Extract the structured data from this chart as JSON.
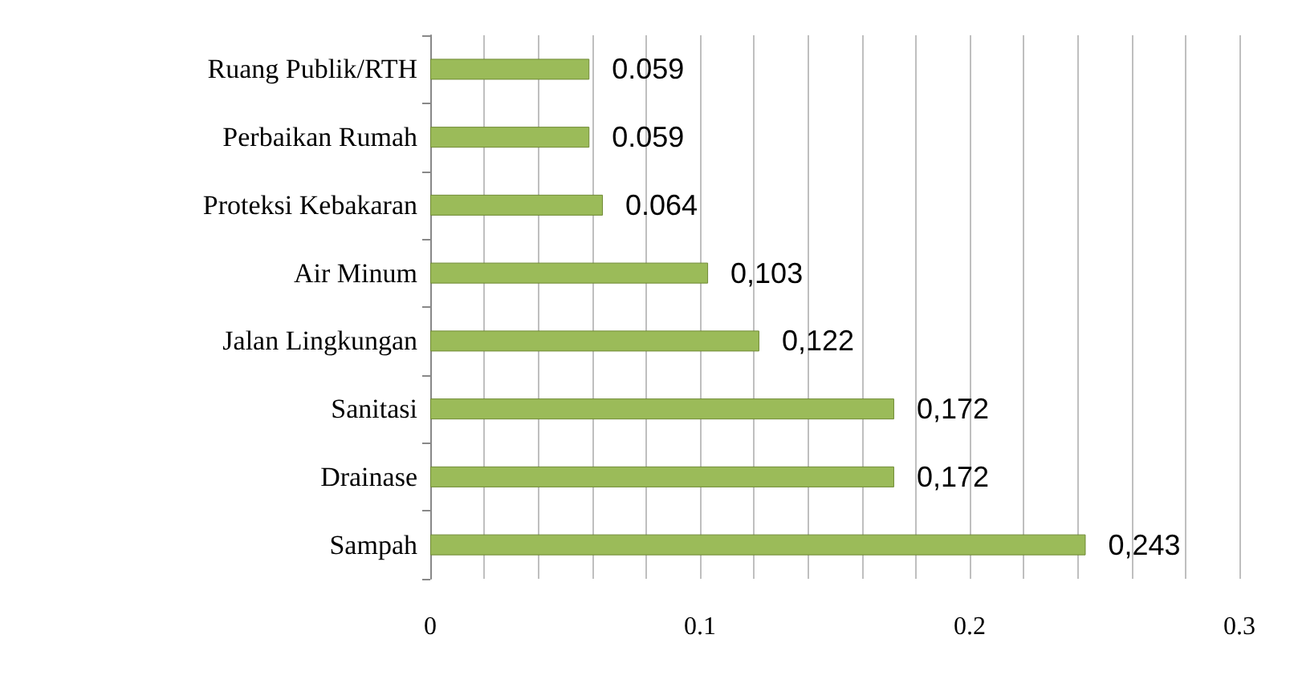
{
  "chart_data": {
    "type": "bar",
    "orientation": "horizontal",
    "categories": [
      "Ruang Publik/RTH",
      "Perbaikan Rumah",
      "Proteksi Kebakaran",
      "Air Minum",
      "Jalan Lingkungan",
      "Sanitasi",
      "Drainase",
      "Sampah"
    ],
    "values": [
      0.059,
      0.059,
      0.064,
      0.103,
      0.122,
      0.172,
      0.172,
      0.243
    ],
    "value_labels": [
      "0.059",
      "0.059",
      "0.064",
      "0,103",
      "0,122",
      "0,172",
      "0,172",
      "0,243"
    ],
    "color": "#9bbb59",
    "xlim": [
      0,
      0.3
    ],
    "xticks": [
      0,
      {
        "value": 0.02,
        "label": null
      },
      {
        "value": 0.04,
        "label": null
      },
      {
        "value": 0.06,
        "label": null
      },
      {
        "value": 0.08,
        "label": null
      },
      0.1,
      {
        "value": 0.12,
        "label": null
      },
      {
        "value": 0.14,
        "label": null
      },
      {
        "value": 0.16,
        "label": null
      },
      {
        "value": 0.18,
        "label": null
      },
      0.2,
      {
        "value": 0.22,
        "label": null
      },
      {
        "value": 0.24,
        "label": null
      },
      {
        "value": 0.26,
        "label": null
      },
      {
        "value": 0.28,
        "label": null
      },
      0.3
    ],
    "grid": "x"
  }
}
